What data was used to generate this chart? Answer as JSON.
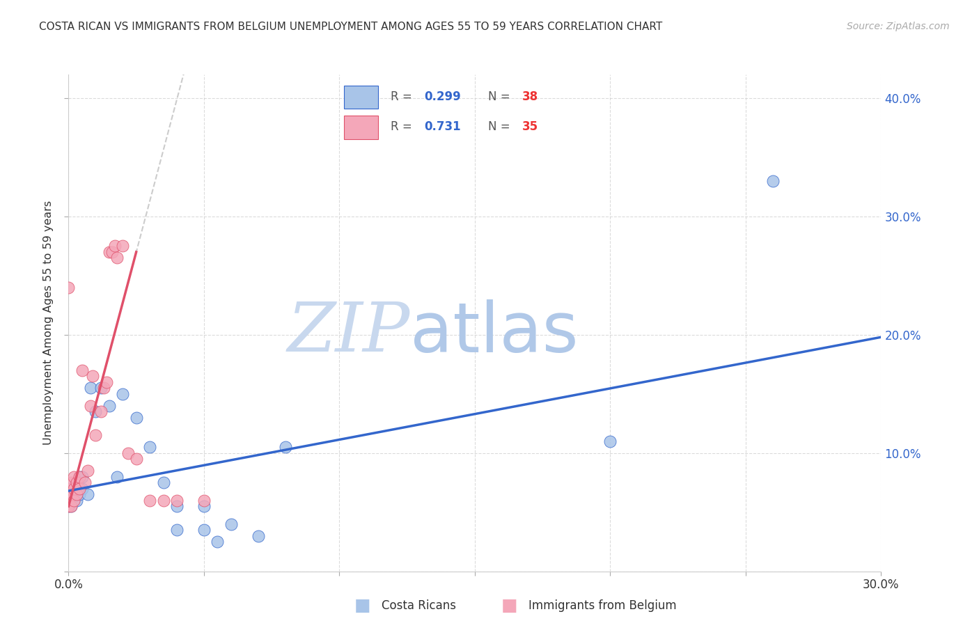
{
  "title": "COSTA RICAN VS IMMIGRANTS FROM BELGIUM UNEMPLOYMENT AMONG AGES 55 TO 59 YEARS CORRELATION CHART",
  "source": "Source: ZipAtlas.com",
  "ylabel": "Unemployment Among Ages 55 to 59 years",
  "xlim": [
    0.0,
    0.3
  ],
  "ylim": [
    0.0,
    0.42
  ],
  "xticks": [
    0.0,
    0.05,
    0.1,
    0.15,
    0.2,
    0.25,
    0.3
  ],
  "yticks": [
    0.0,
    0.1,
    0.2,
    0.3,
    0.4
  ],
  "blue_R": 0.299,
  "blue_N": 38,
  "pink_R": 0.731,
  "pink_N": 35,
  "blue_color": "#a8c4e8",
  "pink_color": "#f4a7b9",
  "blue_line_color": "#3366cc",
  "pink_line_color": "#e0506a",
  "blue_scatter": [
    [
      0.0,
      0.055
    ],
    [
      0.0,
      0.06
    ],
    [
      0.0,
      0.065
    ],
    [
      0.0,
      0.07
    ],
    [
      0.001,
      0.055
    ],
    [
      0.001,
      0.06
    ],
    [
      0.001,
      0.065
    ],
    [
      0.001,
      0.07
    ],
    [
      0.002,
      0.06
    ],
    [
      0.002,
      0.065
    ],
    [
      0.002,
      0.07
    ],
    [
      0.003,
      0.06
    ],
    [
      0.003,
      0.065
    ],
    [
      0.003,
      0.075
    ],
    [
      0.004,
      0.065
    ],
    [
      0.004,
      0.08
    ],
    [
      0.005,
      0.07
    ],
    [
      0.005,
      0.08
    ],
    [
      0.007,
      0.065
    ],
    [
      0.008,
      0.155
    ],
    [
      0.01,
      0.135
    ],
    [
      0.012,
      0.155
    ],
    [
      0.015,
      0.14
    ],
    [
      0.018,
      0.08
    ],
    [
      0.02,
      0.15
    ],
    [
      0.025,
      0.13
    ],
    [
      0.03,
      0.105
    ],
    [
      0.035,
      0.075
    ],
    [
      0.04,
      0.055
    ],
    [
      0.04,
      0.035
    ],
    [
      0.05,
      0.055
    ],
    [
      0.05,
      0.035
    ],
    [
      0.055,
      0.025
    ],
    [
      0.06,
      0.04
    ],
    [
      0.07,
      0.03
    ],
    [
      0.08,
      0.105
    ],
    [
      0.2,
      0.11
    ],
    [
      0.26,
      0.33
    ]
  ],
  "pink_scatter": [
    [
      0.0,
      0.24
    ],
    [
      0.0,
      0.055
    ],
    [
      0.0,
      0.06
    ],
    [
      0.0,
      0.065
    ],
    [
      0.0,
      0.07
    ],
    [
      0.001,
      0.055
    ],
    [
      0.001,
      0.065
    ],
    [
      0.001,
      0.075
    ],
    [
      0.002,
      0.06
    ],
    [
      0.002,
      0.07
    ],
    [
      0.002,
      0.08
    ],
    [
      0.003,
      0.065
    ],
    [
      0.003,
      0.075
    ],
    [
      0.004,
      0.07
    ],
    [
      0.004,
      0.08
    ],
    [
      0.005,
      0.17
    ],
    [
      0.006,
      0.075
    ],
    [
      0.007,
      0.085
    ],
    [
      0.008,
      0.14
    ],
    [
      0.009,
      0.165
    ],
    [
      0.01,
      0.115
    ],
    [
      0.012,
      0.135
    ],
    [
      0.013,
      0.155
    ],
    [
      0.014,
      0.16
    ],
    [
      0.015,
      0.27
    ],
    [
      0.016,
      0.27
    ],
    [
      0.017,
      0.275
    ],
    [
      0.018,
      0.265
    ],
    [
      0.02,
      0.275
    ],
    [
      0.022,
      0.1
    ],
    [
      0.025,
      0.095
    ],
    [
      0.03,
      0.06
    ],
    [
      0.035,
      0.06
    ],
    [
      0.04,
      0.06
    ],
    [
      0.05,
      0.06
    ]
  ],
  "watermark_zip": "ZIP",
  "watermark_atlas": "atlas",
  "watermark_zip_color": "#c8d8ee",
  "watermark_atlas_color": "#b0c8e8",
  "legend_R_color": "#3366cc",
  "legend_N_color": "#ee3333",
  "background_color": "#ffffff",
  "grid_color": "#cccccc",
  "blue_trend": [
    0.0,
    0.3,
    0.068,
    0.198
  ],
  "pink_trend": [
    0.0,
    0.025,
    0.055,
    0.27
  ],
  "pink_dash_trend": [
    0.0,
    0.35,
    0.055,
    0.55
  ]
}
